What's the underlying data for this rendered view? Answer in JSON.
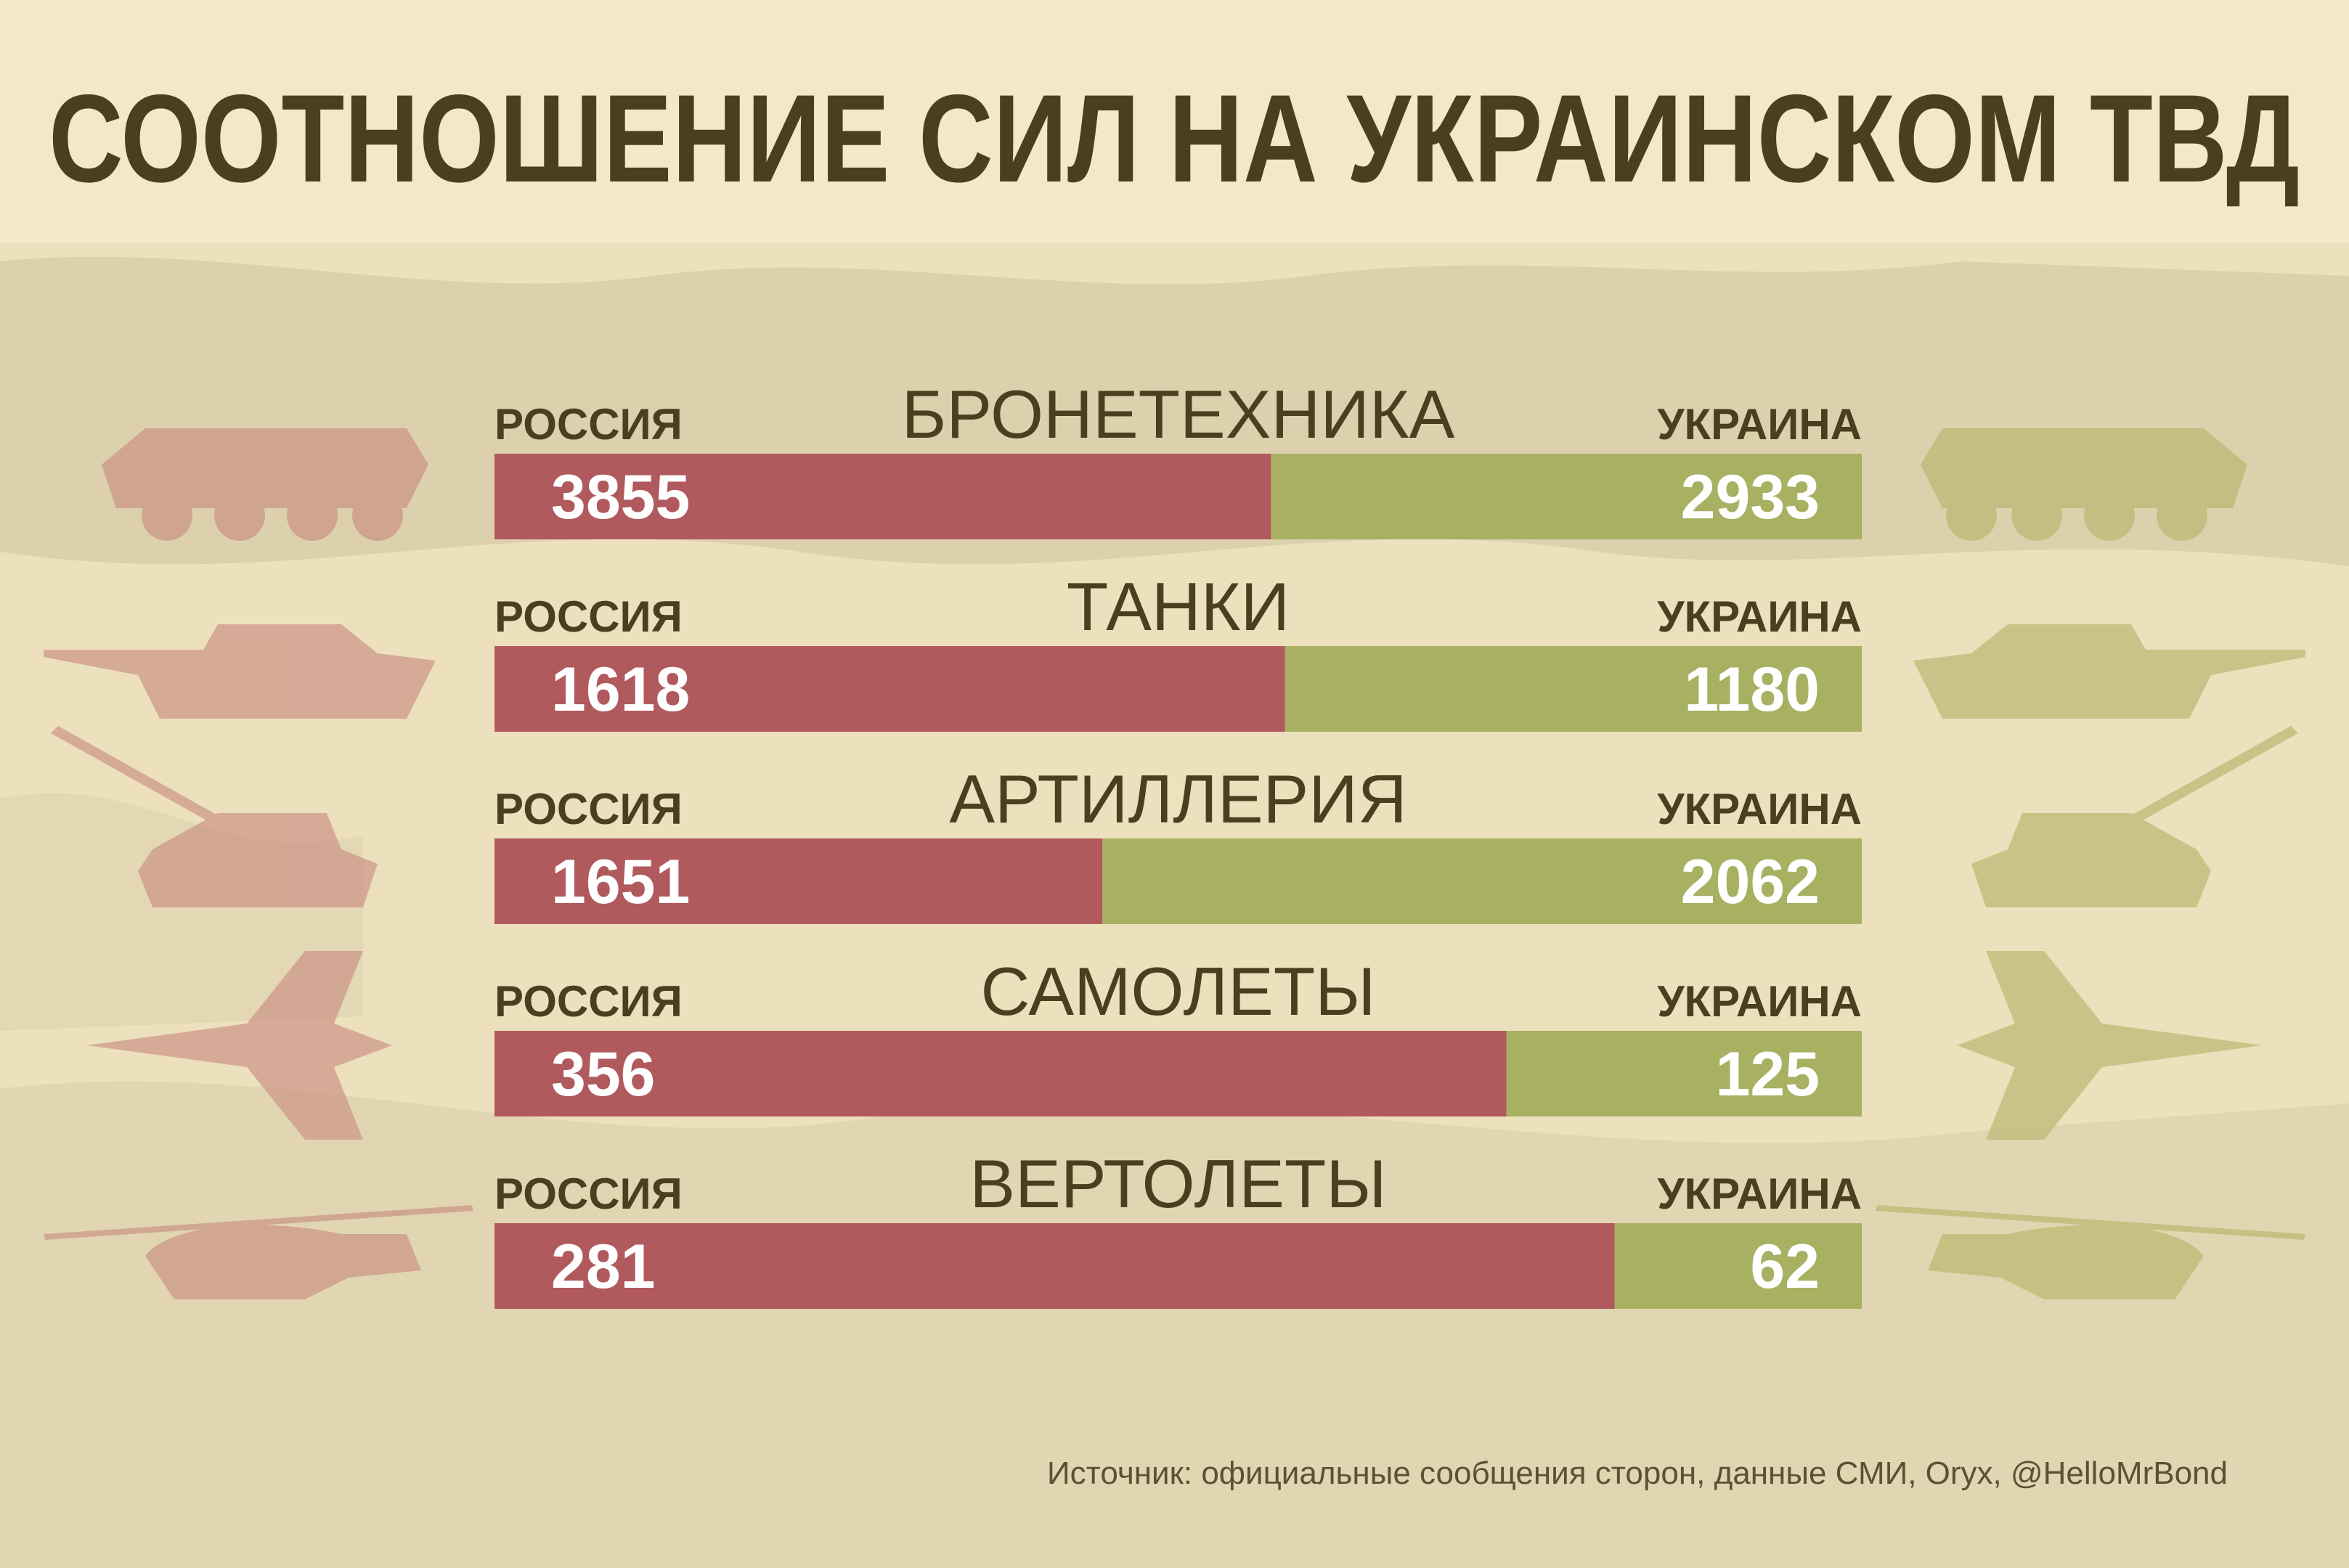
{
  "chart_data": {
    "type": "bar",
    "title": "СООТНОШЕНИЕ СИЛ НА УКРАИНСКОМ ТВД",
    "categories": [
      "БРОНЕТЕХНИКА",
      "ТАНКИ",
      "АРТИЛЛЕРИЯ",
      "САМОЛЕТЫ",
      "ВЕРТОЛЕТЫ"
    ],
    "series": [
      {
        "name": "РОССИЯ",
        "color": "#b05a5e",
        "values": [
          3855,
          1618,
          1651,
          356,
          281
        ]
      },
      {
        "name": "УКРАИНА",
        "color": "#a8b062",
        "values": [
          2933,
          1180,
          2062,
          125,
          62
        ]
      }
    ]
  },
  "source": "Источник: официальные сообщения сторон, данные СМИ, Oryx, @HelloMrBond"
}
